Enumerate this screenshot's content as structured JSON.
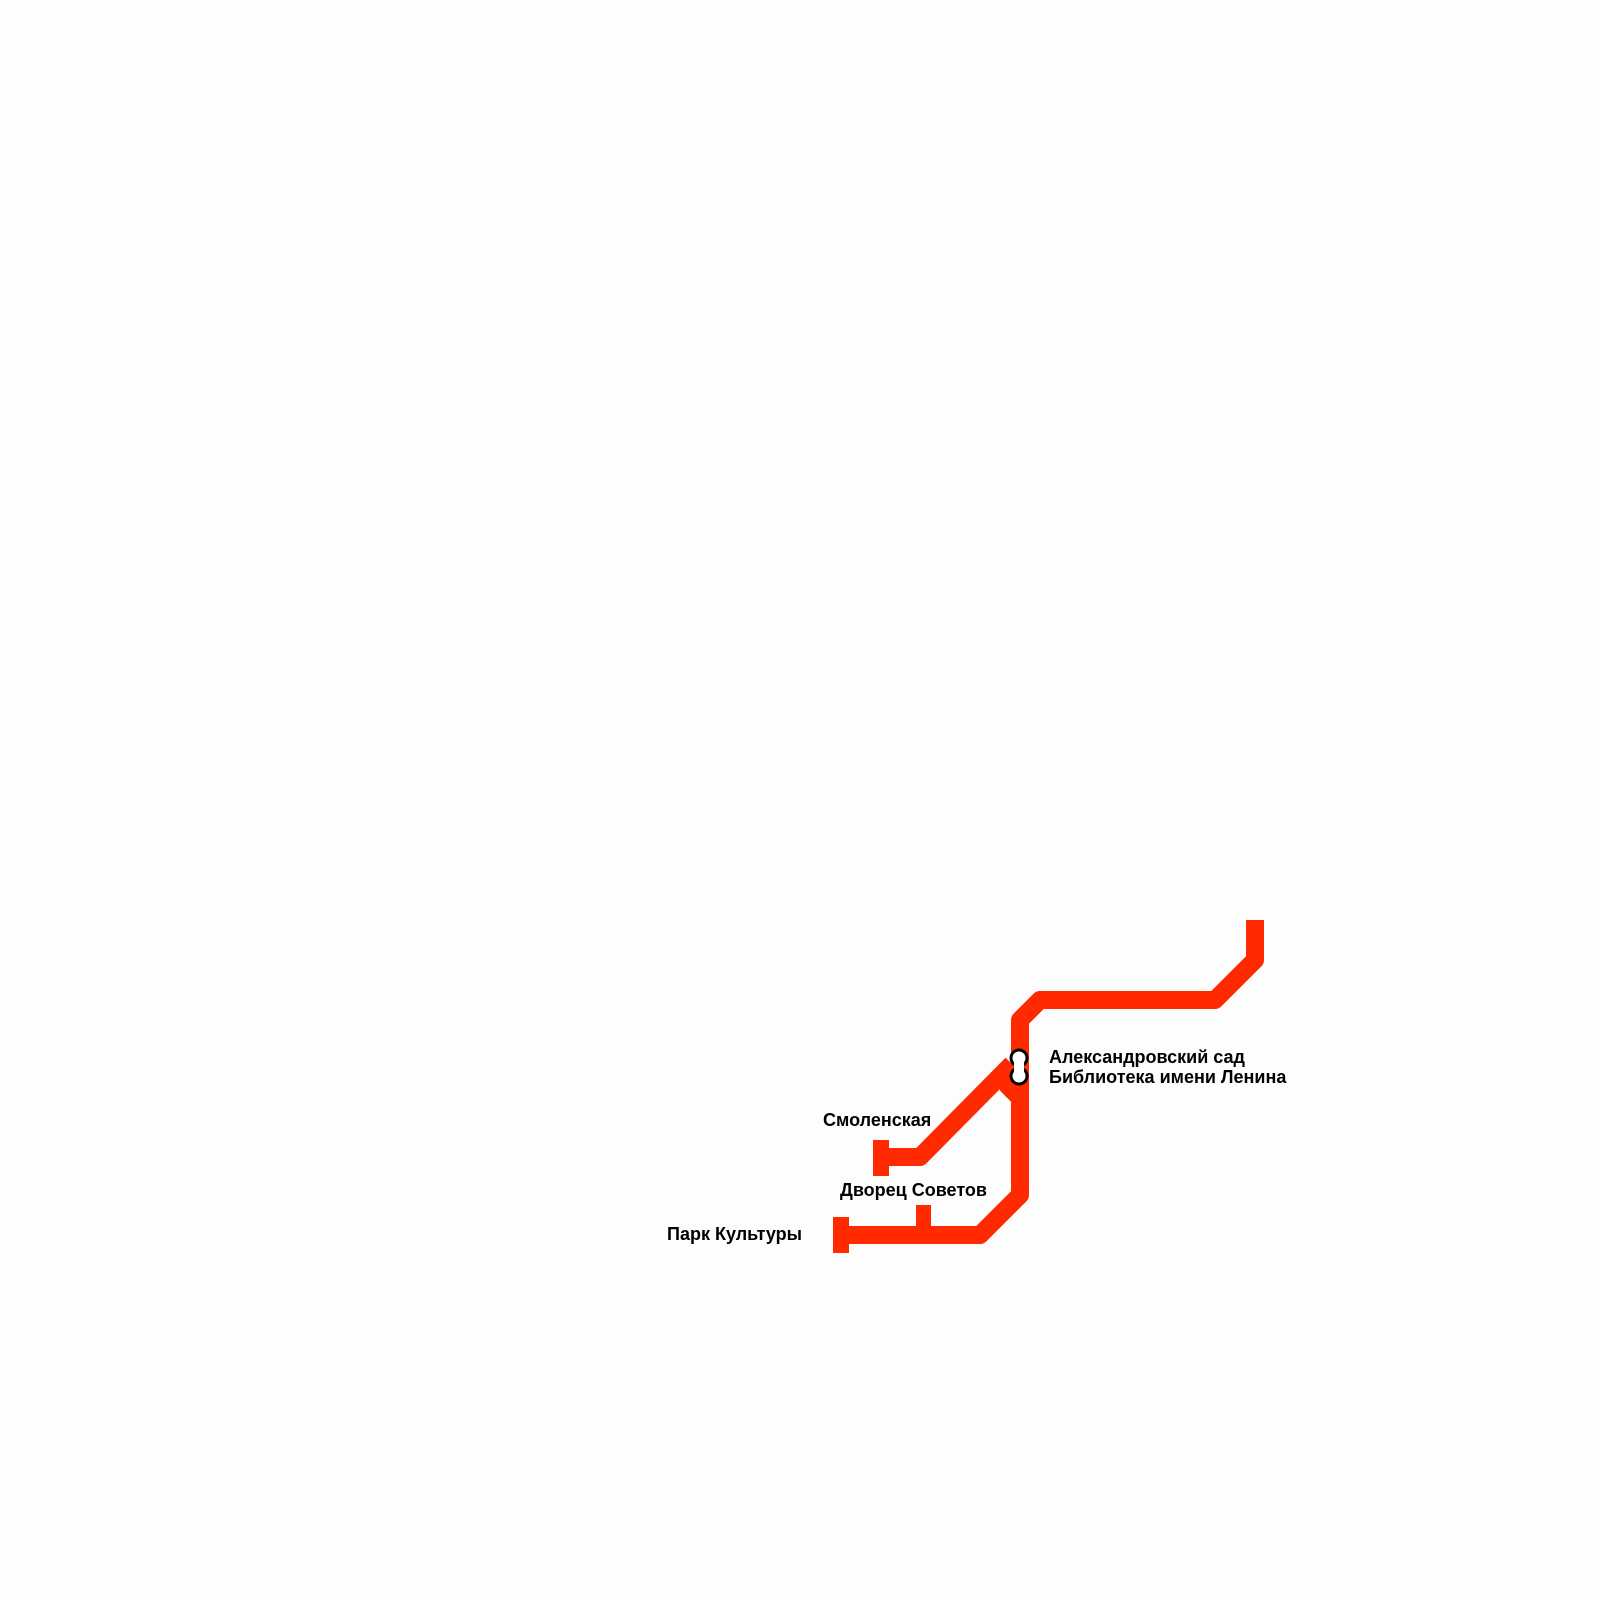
{
  "line": {
    "color": "#ff2a00"
  },
  "interchange": {
    "fill": "#ffffff",
    "stroke": "#000000"
  },
  "stations": [
    {
      "name": "Александровский сад"
    },
    {
      "name": "Библиотека имени Ленина"
    },
    {
      "name": "Смоленская"
    },
    {
      "name": "Дворец Советов"
    },
    {
      "name": "Парк Культуры"
    }
  ]
}
